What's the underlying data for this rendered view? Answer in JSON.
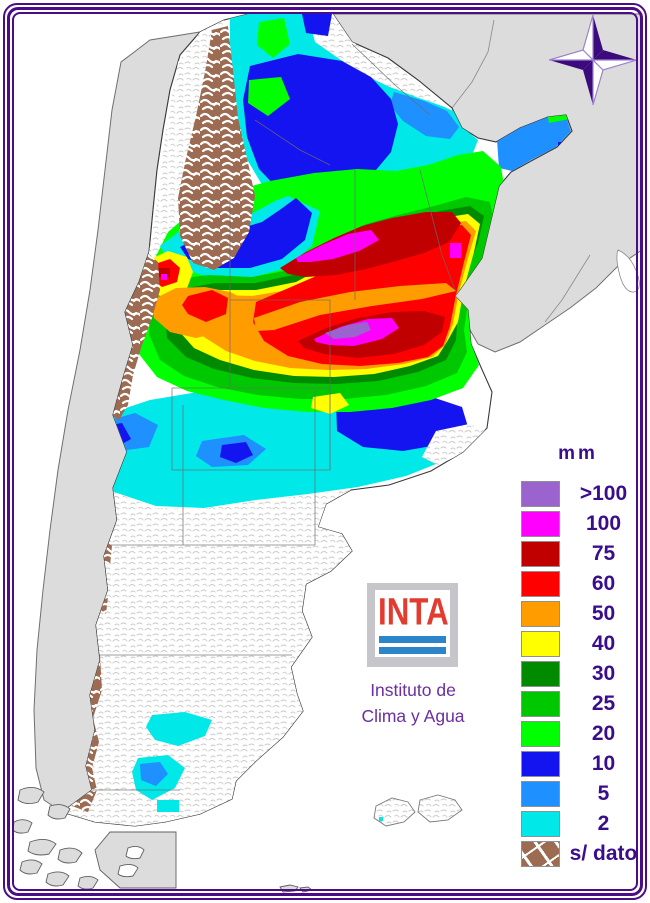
{
  "palette": {
    "p_gt100": "#9A63CE",
    "p_100": "#FF00FF",
    "p_75": "#C00000",
    "p_60": "#FF0000",
    "p_50": "#FF9C00",
    "p_40": "#FFFF00",
    "p_30": "#008A00",
    "p_25": "#00C800",
    "p_20": "#00FF00",
    "p_10": "#1414F0",
    "p_5": "#1E90FF",
    "p_2": "#00E8E8",
    "p_nodata": "#9C6B52",
    "neighbor": "#DCDCDC",
    "ocean": "#FFFFFF",
    "frame_purple": "#4B0D86",
    "text_purple": "#3A0D8C",
    "caption_purple": "#6A2FA0",
    "logo_red": "#E23B30",
    "logo_blue": "#2C85C8",
    "compass_dark": "#3D0A7E",
    "compass_light_stroke": "#9C82CC"
  },
  "legend": {
    "title": "mm",
    "entries": [
      {
        "label": ">100",
        "color_key": "p_gt100",
        "pattern": false
      },
      {
        "label": "100",
        "color_key": "p_100",
        "pattern": false
      },
      {
        "label": "75",
        "color_key": "p_75",
        "pattern": false
      },
      {
        "label": "60",
        "color_key": "p_60",
        "pattern": false
      },
      {
        "label": "50",
        "color_key": "p_50",
        "pattern": false
      },
      {
        "label": "40",
        "color_key": "p_40",
        "pattern": false
      },
      {
        "label": "30",
        "color_key": "p_30",
        "pattern": false
      },
      {
        "label": "25",
        "color_key": "p_25",
        "pattern": false
      },
      {
        "label": "20",
        "color_key": "p_20",
        "pattern": false
      },
      {
        "label": "10",
        "color_key": "p_10",
        "pattern": false
      },
      {
        "label": "5",
        "color_key": "p_5",
        "pattern": false
      },
      {
        "label": "2",
        "color_key": "p_2",
        "pattern": false
      },
      {
        "label": "s/ dato",
        "color_key": "p_nodata",
        "pattern": true
      }
    ]
  },
  "logo": {
    "acronym": "INTA",
    "caption_line1": "Instituto de",
    "caption_line2": "Clima y Agua"
  }
}
